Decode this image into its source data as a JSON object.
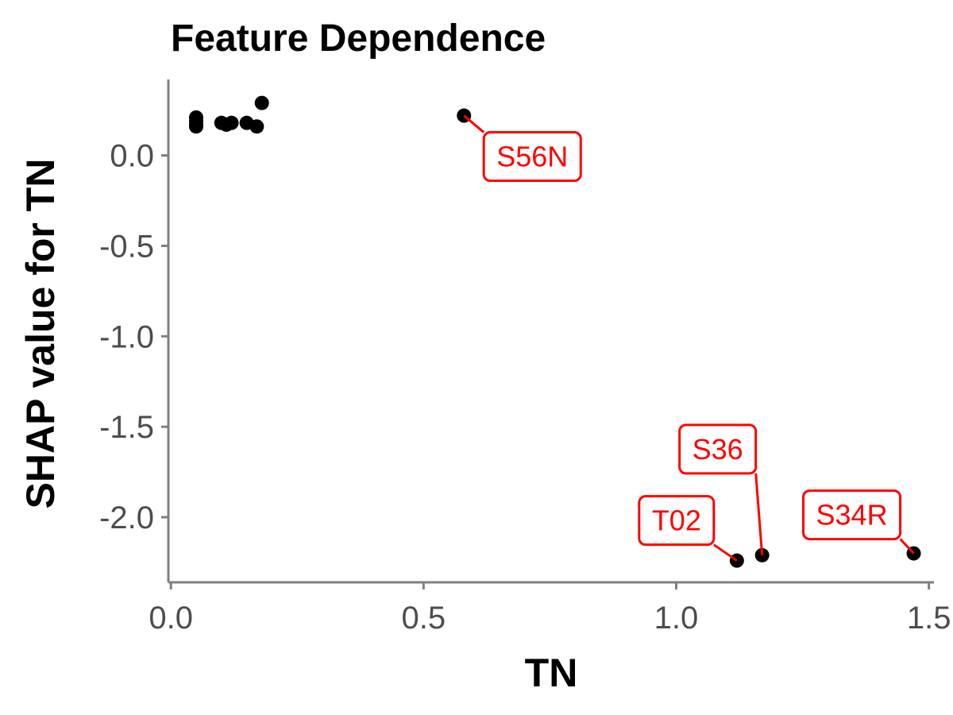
{
  "chart_data": {
    "type": "scatter",
    "title": "Feature Dependence",
    "xlabel": "TN",
    "ylabel": "SHAP value for TN",
    "xlim": [
      -0.005,
      1.51
    ],
    "ylim": [
      -2.36,
      0.42
    ],
    "x_ticks": [
      0.0,
      0.5,
      1.0,
      1.5
    ],
    "x_tick_labels": [
      "0.0",
      "0.5",
      "1.0",
      "1.5"
    ],
    "y_ticks": [
      0.0,
      -0.5,
      -1.0,
      -1.5,
      -2.0
    ],
    "y_tick_labels": [
      "0.0",
      "-0.5",
      "-1.0",
      "-1.5",
      "-2.0"
    ],
    "grid": false,
    "point_color": "#000000",
    "annotation_color": "#ff0000",
    "points": [
      {
        "x": 0.05,
        "y": 0.21
      },
      {
        "x": 0.05,
        "y": 0.19
      },
      {
        "x": 0.05,
        "y": 0.17
      },
      {
        "x": 0.05,
        "y": 0.16
      },
      {
        "x": 0.1,
        "y": 0.18
      },
      {
        "x": 0.11,
        "y": 0.17
      },
      {
        "x": 0.12,
        "y": 0.18
      },
      {
        "x": 0.15,
        "y": 0.18
      },
      {
        "x": 0.17,
        "y": 0.16
      },
      {
        "x": 0.18,
        "y": 0.29
      },
      {
        "x": 0.58,
        "y": 0.22
      },
      {
        "x": 1.12,
        "y": -2.24
      },
      {
        "x": 1.17,
        "y": -2.21
      },
      {
        "x": 1.47,
        "y": -2.2
      }
    ],
    "annotations": [
      {
        "label": "S56N",
        "x": 0.58,
        "y": 0.22
      },
      {
        "label": "T02",
        "x": 1.12,
        "y": -2.24
      },
      {
        "label": "S36",
        "x": 1.17,
        "y": -2.21
      },
      {
        "label": "S34R",
        "x": 1.47,
        "y": -2.2
      }
    ]
  }
}
